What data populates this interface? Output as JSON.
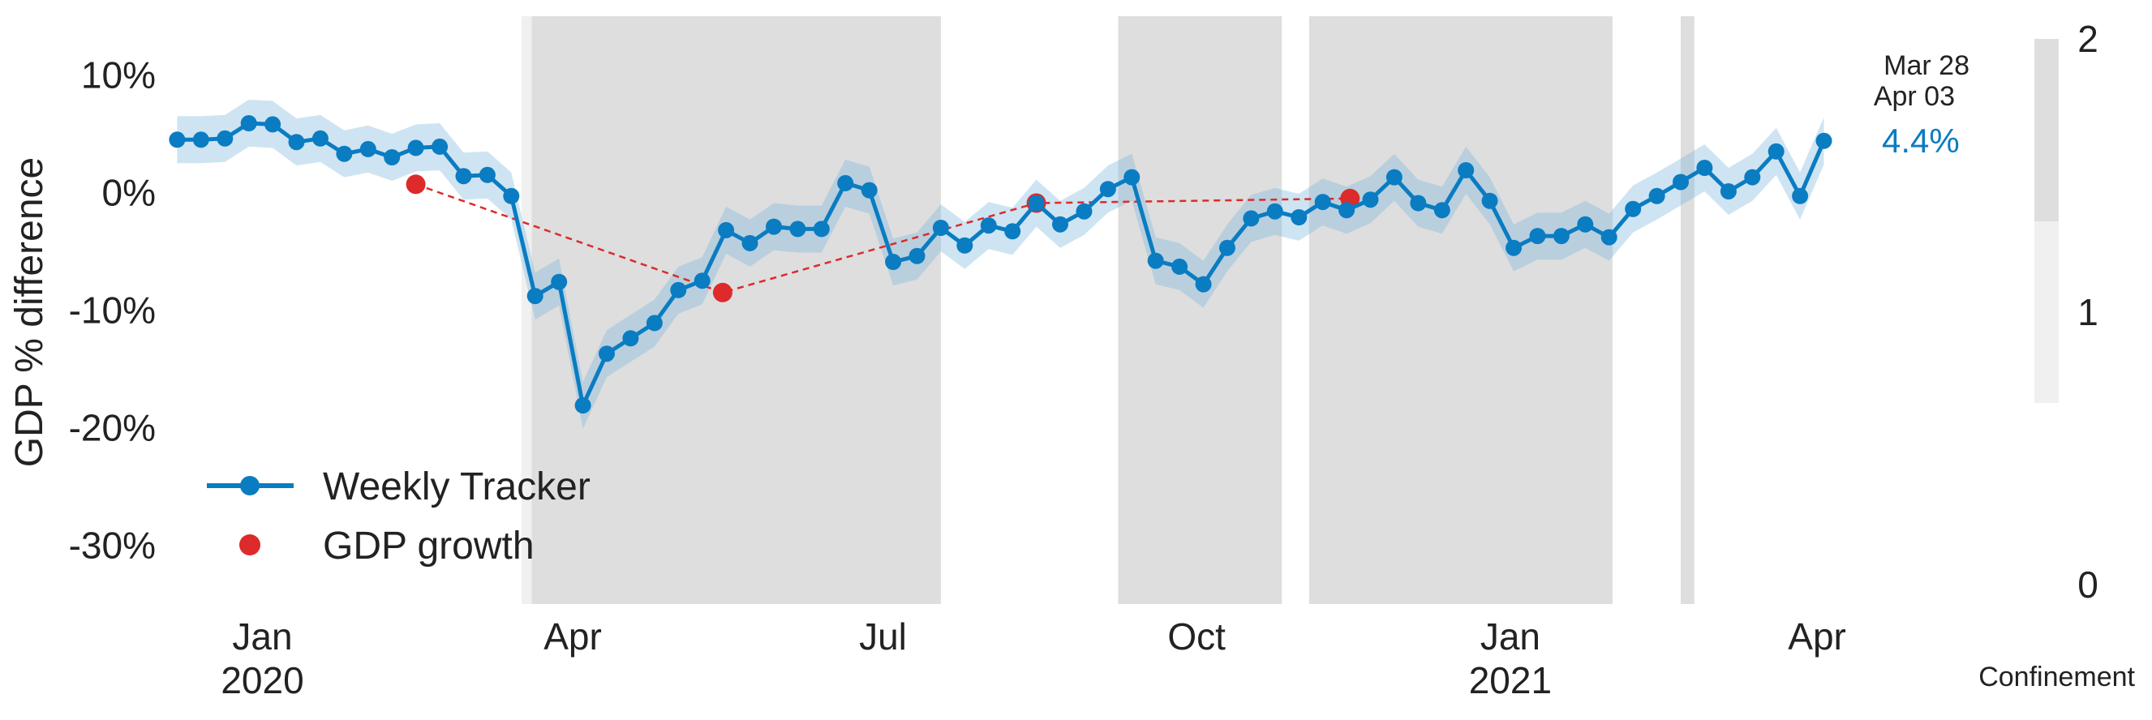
{
  "chart_data": {
    "type": "line",
    "ylabel": "GDP % difference",
    "ylim": [
      -35,
      15
    ],
    "y_ticks": [
      10,
      0,
      -10,
      -20,
      -30
    ],
    "y_tick_labels": [
      "10%",
      "0%",
      "-10%",
      "-20%",
      "-30%"
    ],
    "x_ticks": [
      {
        "date": "2020-01-01",
        "line1": "Jan",
        "line2": "2020"
      },
      {
        "date": "2020-04-01",
        "line1": "Apr",
        "line2": ""
      },
      {
        "date": "2020-07-01",
        "line1": "Jul",
        "line2": ""
      },
      {
        "date": "2020-10-01",
        "line1": "Oct",
        "line2": ""
      },
      {
        "date": "2021-01-01",
        "line1": "Jan",
        "line2": "2021"
      },
      {
        "date": "2021-04-01",
        "line1": "Apr",
        "line2": ""
      }
    ],
    "xlim": [
      "2019-12-05",
      "2021-04-20"
    ],
    "grid": false,
    "legend_placement": "bottom-left",
    "series": [
      {
        "name": "Weekly Tracker",
        "color": "#0a7cc2",
        "band_color": "#7fb8de",
        "points": [
          [
            "2019-12-07",
            4.5
          ],
          [
            "2019-12-14",
            4.5
          ],
          [
            "2019-12-21",
            4.6
          ],
          [
            "2019-12-28",
            5.9
          ],
          [
            "2020-01-04",
            5.8
          ],
          [
            "2020-01-11",
            4.3
          ],
          [
            "2020-01-18",
            4.6
          ],
          [
            "2020-01-25",
            3.3
          ],
          [
            "2020-02-01",
            3.7
          ],
          [
            "2020-02-08",
            3.0
          ],
          [
            "2020-02-15",
            3.8
          ],
          [
            "2020-02-22",
            3.9
          ],
          [
            "2020-02-29",
            1.4
          ],
          [
            "2020-03-07",
            1.5
          ],
          [
            "2020-03-14",
            -0.3
          ],
          [
            "2020-03-21",
            -8.8
          ],
          [
            "2020-03-28",
            -7.6
          ],
          [
            "2020-04-04",
            -18.1
          ],
          [
            "2020-04-11",
            -13.7
          ],
          [
            "2020-04-18",
            -12.4
          ],
          [
            "2020-04-25",
            -11.1
          ],
          [
            "2020-05-02",
            -8.3
          ],
          [
            "2020-05-09",
            -7.5
          ],
          [
            "2020-05-16",
            -3.2
          ],
          [
            "2020-05-23",
            -4.3
          ],
          [
            "2020-05-30",
            -2.9
          ],
          [
            "2020-06-06",
            -3.1
          ],
          [
            "2020-06-13",
            -3.1
          ],
          [
            "2020-06-20",
            0.8
          ],
          [
            "2020-06-27",
            0.2
          ],
          [
            "2020-07-04",
            -5.9
          ],
          [
            "2020-07-11",
            -5.4
          ],
          [
            "2020-07-18",
            -3.0
          ],
          [
            "2020-07-25",
            -4.5
          ],
          [
            "2020-08-01",
            -2.8
          ],
          [
            "2020-08-08",
            -3.3
          ],
          [
            "2020-08-15",
            -0.9
          ],
          [
            "2020-08-22",
            -2.7
          ],
          [
            "2020-08-29",
            -1.6
          ],
          [
            "2020-09-05",
            0.3
          ],
          [
            "2020-09-12",
            1.3
          ],
          [
            "2020-09-19",
            -5.8
          ],
          [
            "2020-09-26",
            -6.3
          ],
          [
            "2020-10-03",
            -7.8
          ],
          [
            "2020-10-10",
            -4.7
          ],
          [
            "2020-10-17",
            -2.2
          ],
          [
            "2020-10-24",
            -1.6
          ],
          [
            "2020-10-31",
            -2.1
          ],
          [
            "2020-11-07",
            -0.8
          ],
          [
            "2020-11-14",
            -1.5
          ],
          [
            "2020-11-21",
            -0.6
          ],
          [
            "2020-11-28",
            1.3
          ],
          [
            "2020-12-05",
            -0.9
          ],
          [
            "2020-12-12",
            -1.5
          ],
          [
            "2020-12-19",
            1.9
          ],
          [
            "2020-12-26",
            -0.7
          ],
          [
            "2021-01-02",
            -4.7
          ],
          [
            "2021-01-09",
            -3.7
          ],
          [
            "2021-01-16",
            -3.7
          ],
          [
            "2021-01-23",
            -2.7
          ],
          [
            "2021-01-30",
            -3.8
          ],
          [
            "2021-02-06",
            -1.4
          ],
          [
            "2021-02-13",
            -0.3
          ],
          [
            "2021-02-20",
            0.9
          ],
          [
            "2021-02-27",
            2.1
          ],
          [
            "2021-03-06",
            0.1
          ],
          [
            "2021-03-13",
            1.3
          ],
          [
            "2021-03-20",
            3.5
          ],
          [
            "2021-03-27",
            -0.3
          ],
          [
            "2021-04-03",
            4.4
          ]
        ],
        "band_halfwidth": 2.0
      },
      {
        "name": "GDP growth",
        "color": "#dd2a2a",
        "line_style": "dashed",
        "points": [
          [
            "2020-02-15",
            0.7
          ],
          [
            "2020-05-15",
            -8.5
          ],
          [
            "2020-08-15",
            -0.9
          ],
          [
            "2020-11-15",
            -0.5
          ]
        ]
      }
    ],
    "shaded_regions": [
      {
        "start": "2020-03-17",
        "end": "2020-03-20",
        "level": 1
      },
      {
        "start": "2020-03-20",
        "end": "2020-07-18",
        "level": 2
      },
      {
        "start": "2020-09-08",
        "end": "2020-10-26",
        "level": 2
      },
      {
        "start": "2020-11-03",
        "end": "2021-01-31",
        "level": 2
      },
      {
        "start": "2021-02-20",
        "end": "2021-02-24",
        "level": 2
      }
    ],
    "annotations": {
      "date1": "Mar 28",
      "date2": "Apr 03",
      "last_value": "4.4%"
    },
    "confinement_scale": {
      "label": "Confinement",
      "ticks": [
        "2",
        "1",
        "0"
      ],
      "colors": {
        "level1": "#f0f0f0",
        "level2": "#dedede"
      }
    }
  }
}
